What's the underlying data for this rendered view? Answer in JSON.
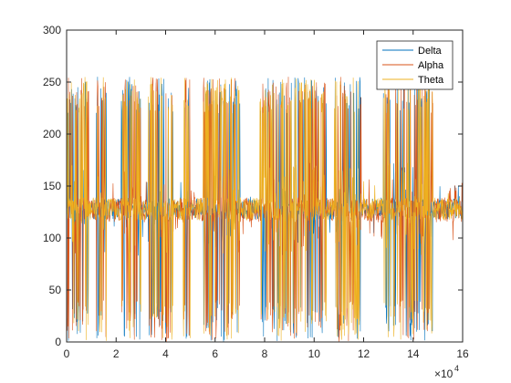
{
  "chart_data": {
    "type": "line",
    "title": "",
    "xlabel": "",
    "ylabel": "",
    "xlim": [
      0,
      160000
    ],
    "ylim": [
      0,
      300
    ],
    "x_exponent_label": {
      "base": "×10",
      "exp": "4"
    },
    "x_ticks": [
      0,
      20000,
      40000,
      60000,
      80000,
      100000,
      120000,
      140000,
      160000
    ],
    "x_tick_labels": [
      "0",
      "2",
      "4",
      "6",
      "8",
      "10",
      "12",
      "14",
      "16"
    ],
    "y_ticks": [
      0,
      50,
      100,
      150,
      200,
      250,
      300
    ],
    "y_tick_labels": [
      "0",
      "50",
      "100",
      "150",
      "200",
      "250",
      "300"
    ],
    "grid": false,
    "legend_position": "top-right",
    "series": [
      {
        "name": "Delta",
        "color": "#0072BD",
        "baseline": 128,
        "band": 10,
        "spike_max": 255,
        "spike_min": 0
      },
      {
        "name": "Alpha",
        "color": "#D95319",
        "baseline": 127,
        "band": 12,
        "spike_max": 255,
        "spike_min": 0
      },
      {
        "name": "Theta",
        "color": "#EDB120",
        "baseline": 128,
        "band": 11,
        "spike_max": 255,
        "spike_min": 0
      }
    ]
  }
}
